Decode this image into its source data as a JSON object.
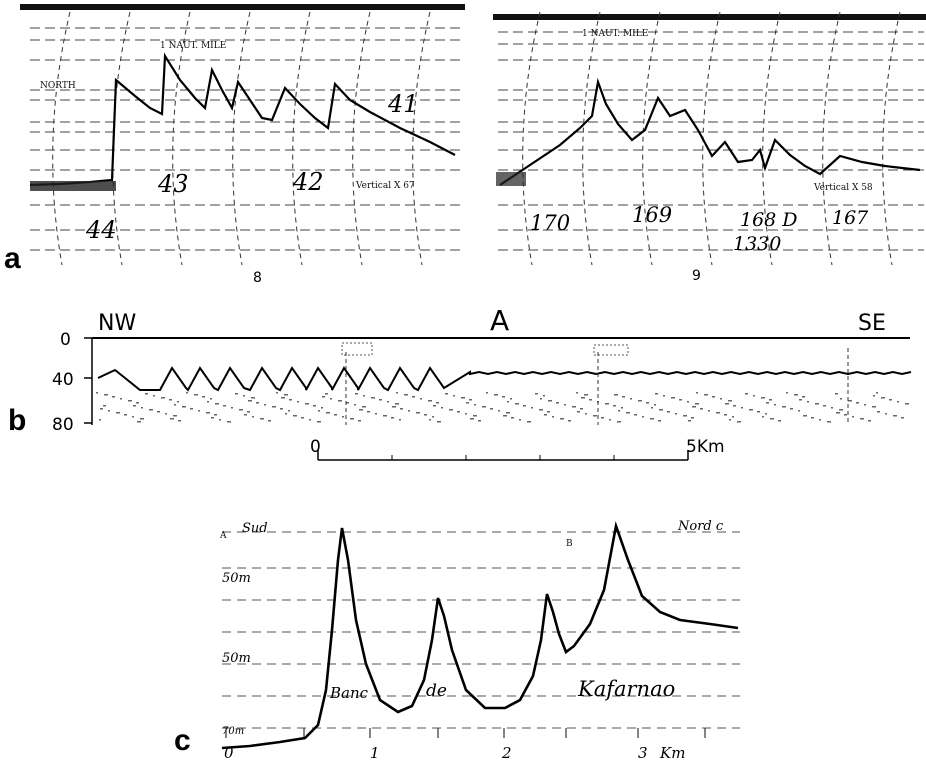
{
  "panels": {
    "a": {
      "label": "a",
      "left": {
        "header": "1 NAUT. MILE",
        "direction": "NORTH",
        "scale_note": "Vertical X 67",
        "numbers": [
          "44",
          "43",
          "42",
          "41"
        ],
        "fix": "8"
      },
      "right": {
        "header": "1 NAUT. MILE",
        "scale_note": "Vertical X 58",
        "numbers": [
          "170",
          "169",
          "168 D",
          "1330",
          "167"
        ],
        "fix": "9"
      }
    },
    "b": {
      "label": "b",
      "nw": "NW",
      "se": "SE",
      "section": "A",
      "depth_ticks": [
        "0",
        "40",
        "80"
      ],
      "scale_start": "0",
      "scale_end": "5Km"
    },
    "c": {
      "label": "c",
      "south": "Sud",
      "north": "Nord c",
      "mark_a": "A",
      "mark_b": "B",
      "depth_marks": [
        "50m",
        "50m",
        "70m"
      ],
      "words": [
        "Banc",
        "de",
        "Kafarnao"
      ],
      "x_ticks": [
        "0",
        "1",
        "2",
        "3"
      ],
      "x_unit": "Km"
    }
  }
}
